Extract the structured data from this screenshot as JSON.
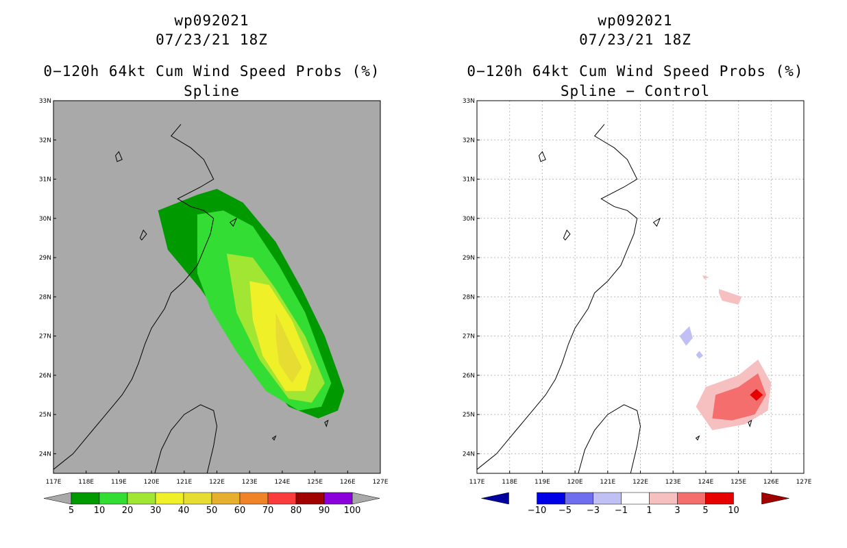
{
  "panels": [
    {
      "storm": "wp092021",
      "datetime": "07/23/21 18Z",
      "product": "0−120h 64kt Cum Wind Speed Probs (%)",
      "subtitle": "Spline",
      "background": "#a9a9a9"
    },
    {
      "storm": "wp092021",
      "datetime": "07/23/21 18Z",
      "product": "0−120h 64kt Cum Wind Speed Probs (%)",
      "subtitle": "Spline − Control",
      "background": "#ffffff"
    }
  ],
  "chart_data": [
    {
      "type": "heatmap",
      "title": "0-120h 64kt Cum Wind Speed Probs (%) Spline",
      "xlim": [
        117,
        127
      ],
      "ylim": [
        23.5,
        33
      ],
      "x_ticks": [
        "117E",
        "118E",
        "119E",
        "120E",
        "121E",
        "122E",
        "123E",
        "124E",
        "125E",
        "126E",
        "127E"
      ],
      "y_ticks": [
        "24N",
        "25N",
        "26N",
        "27N",
        "28N",
        "29N",
        "30N",
        "31N",
        "32N",
        "33N"
      ],
      "grid": false,
      "colorbar": {
        "levels": [
          "5",
          "10",
          "20",
          "30",
          "40",
          "50",
          "60",
          "70",
          "80",
          "90",
          "100"
        ],
        "colors": [
          "#009900",
          "#33dd33",
          "#a0e632",
          "#f0f028",
          "#e6dc32",
          "#e6af2d",
          "#f08228",
          "#fa3c3c",
          "#a00000",
          "#8c00dc"
        ]
      },
      "contours": [
        {
          "level": 5,
          "color": "#009900",
          "points": [
            [
              121.4,
              30.6
            ],
            [
              122,
              30.75
            ],
            [
              122.8,
              30.4
            ],
            [
              123.8,
              29.4
            ],
            [
              124.6,
              28.2
            ],
            [
              125.3,
              27
            ],
            [
              125.9,
              25.6
            ],
            [
              125.7,
              25.1
            ],
            [
              125.1,
              24.9
            ],
            [
              124.2,
              25.2
            ],
            [
              123,
              26.4
            ],
            [
              121.5,
              28.2
            ],
            [
              120.5,
              29.2
            ],
            [
              120.2,
              30.2
            ]
          ]
        },
        {
          "level": 10,
          "color": "#33dd33",
          "points": [
            [
              121.4,
              30.1
            ],
            [
              122.2,
              30.2
            ],
            [
              123.1,
              29.8
            ],
            [
              123.9,
              28.8
            ],
            [
              124.7,
              27.6
            ],
            [
              125.5,
              25.8
            ],
            [
              125.2,
              25.2
            ],
            [
              124.5,
              25.1
            ],
            [
              123.5,
              25.6
            ],
            [
              122.6,
              26.6
            ],
            [
              121.8,
              27.7
            ],
            [
              121.4,
              28.6
            ]
          ]
        },
        {
          "level": 20,
          "color": "#a0e632",
          "points": [
            [
              122.3,
              29.1
            ],
            [
              123.1,
              29
            ],
            [
              123.8,
              28.2
            ],
            [
              124.7,
              27
            ],
            [
              125.3,
              25.8
            ],
            [
              124.9,
              25.3
            ],
            [
              124.2,
              25.4
            ],
            [
              123.3,
              26.4
            ],
            [
              122.6,
              27.6
            ]
          ]
        },
        {
          "level": 30,
          "color": "#f0f028",
          "points": [
            [
              123,
              28.4
            ],
            [
              123.6,
              28.3
            ],
            [
              124.3,
              27.4
            ],
            [
              124.9,
              26.2
            ],
            [
              124.7,
              25.6
            ],
            [
              124.1,
              25.6
            ],
            [
              123.4,
              26.5
            ],
            [
              123.1,
              27.4
            ]
          ]
        },
        {
          "level": 40,
          "color": "#e6dc32",
          "points": [
            [
              123.8,
              27.6
            ],
            [
              124.3,
              26.7
            ],
            [
              124.6,
              26.2
            ],
            [
              124.3,
              25.8
            ],
            [
              123.9,
              26.3
            ],
            [
              123.8,
              27
            ]
          ]
        }
      ]
    },
    {
      "type": "heatmap",
      "title": "0-120h 64kt Cum Wind Speed Probs (%) Spline - Control",
      "xlim": [
        117,
        127
      ],
      "ylim": [
        23.5,
        33
      ],
      "x_ticks": [
        "117E",
        "118E",
        "119E",
        "120E",
        "121E",
        "122E",
        "123E",
        "124E",
        "125E",
        "126E",
        "127E"
      ],
      "y_ticks": [
        "24N",
        "25N",
        "26N",
        "27N",
        "28N",
        "29N",
        "30N",
        "31N",
        "32N",
        "33N"
      ],
      "grid": true,
      "colorbar": {
        "levels": [
          "−10",
          "−5",
          "−3",
          "−1",
          "1",
          "3",
          "5",
          "10"
        ],
        "colors": [
          "#0000a0",
          "#0000e6",
          "#6e6eef",
          "#c0c0f5",
          "#ffffff",
          "#f7c0c0",
          "#f46e6e",
          "#e60000",
          "#a00000"
        ]
      },
      "contours": [
        {
          "level": 1,
          "color": "#f7c0c0",
          "points": [
            [
              125.6,
              26.4
            ],
            [
              126,
              25.8
            ],
            [
              125.9,
              25.1
            ],
            [
              125.2,
              24.75
            ],
            [
              124.2,
              24.6
            ],
            [
              123.7,
              25.2
            ],
            [
              124,
              25.7
            ],
            [
              125,
              26
            ]
          ]
        },
        {
          "level": 3,
          "color": "#f46e6e",
          "points": [
            [
              125.6,
              26.05
            ],
            [
              125.85,
              25.5
            ],
            [
              125.5,
              25
            ],
            [
              124.8,
              24.85
            ],
            [
              124.2,
              24.9
            ],
            [
              124.3,
              25.5
            ],
            [
              125,
              25.7
            ]
          ]
        },
        {
          "level": 5,
          "color": "#e60000",
          "points": [
            [
              125.55,
              25.65
            ],
            [
              125.75,
              25.5
            ],
            [
              125.55,
              25.35
            ],
            [
              125.35,
              25.5
            ]
          ]
        },
        {
          "level": 1,
          "color": "#f7c0c0",
          "points": [
            [
              124.4,
              28.2
            ],
            [
              125.1,
              28
            ],
            [
              125,
              27.8
            ],
            [
              124.5,
              27.9
            ],
            [
              124.4,
              28.1
            ]
          ]
        },
        {
          "level": 1,
          "color": "#f7c0c0",
          "points": [
            [
              123.9,
              28.55
            ],
            [
              124.1,
              28.5
            ],
            [
              123.95,
              28.45
            ]
          ]
        },
        {
          "level": -1,
          "color": "#c0c0f5",
          "points": [
            [
              123.5,
              27.25
            ],
            [
              123.6,
              26.95
            ],
            [
              123.4,
              26.75
            ],
            [
              123.2,
              27
            ]
          ]
        },
        {
          "level": -1,
          "color": "#c0c0f5",
          "points": [
            [
              123.8,
              26.62
            ],
            [
              123.92,
              26.5
            ],
            [
              123.8,
              26.42
            ],
            [
              123.7,
              26.52
            ]
          ]
        }
      ]
    }
  ]
}
